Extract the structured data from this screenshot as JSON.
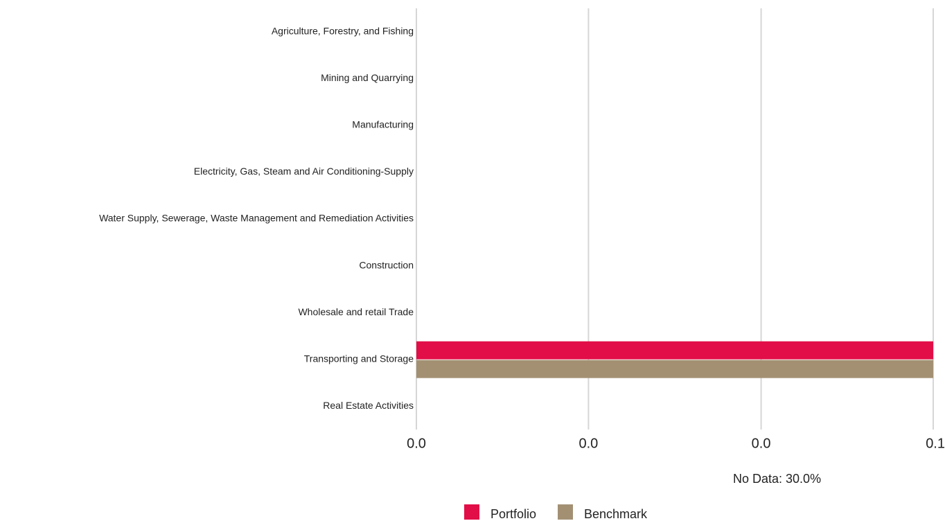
{
  "chart_data": {
    "type": "hbar",
    "categories": [
      "Agriculture, Forestry, and Fishing",
      "Mining and Quarrying",
      "Manufacturing",
      "Electricity, Gas, Steam and Air Conditioning-Supply",
      "Water Supply, Sewerage, Waste Management and Remediation Activities",
      "Construction",
      "Wholesale and retail Trade",
      "Transporting and Storage",
      "Real Estate Activities"
    ],
    "series": [
      {
        "name": "Portfolio",
        "color": "#e20e47",
        "values": [
          0,
          0,
          0,
          0,
          0,
          0,
          0,
          0.1,
          0
        ]
      },
      {
        "name": "Benchmark",
        "color": "#a39073",
        "values": [
          0,
          0,
          0,
          0,
          0,
          0,
          0,
          0.1,
          0
        ]
      }
    ],
    "xlim": [
      0,
      0.1
    ],
    "xticks": [
      {
        "value": 0,
        "label": "0.0"
      },
      {
        "value": 0.0333,
        "label": "0.0"
      },
      {
        "value": 0.0667,
        "label": "0.0"
      },
      {
        "value": 0.1,
        "label": "0.1"
      }
    ],
    "grid": true,
    "annotation": "No Data: 30.0%"
  }
}
